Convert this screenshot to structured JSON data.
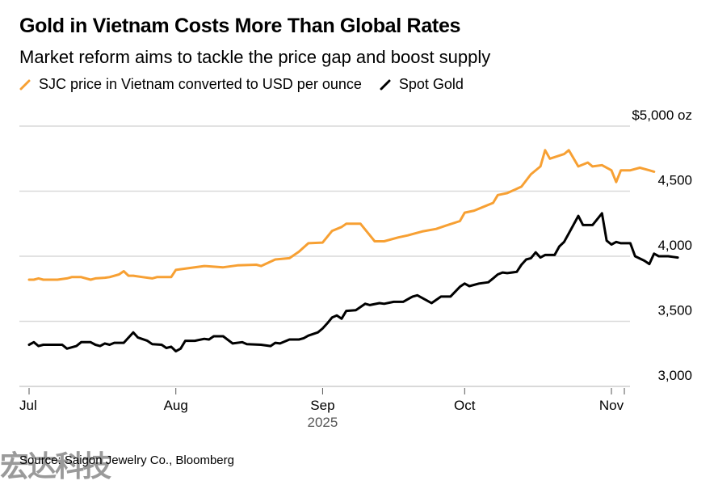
{
  "title": "Gold in Vietnam Costs More Than Global Rates",
  "subtitle": "Market reform aims to tackle the price gap and boost supply",
  "source": "Source: Saigon Jewelry Co., Bloomberg",
  "watermark": "宏达科技",
  "colors": {
    "sjc": "#f7a033",
    "spot": "#000000",
    "grid": "#d9d9d9"
  },
  "chart_data": {
    "type": "line",
    "title": "Gold in Vietnam Costs More Than Global Rates",
    "subtitle": "Market reform aims to tackle the price gap and boost supply",
    "xlabel": "2025",
    "ylabel": "",
    "y_unit_label": "$5,000 oz",
    "ylim": [
      3000,
      5000
    ],
    "yticks": [
      {
        "value": 5000,
        "label": "$5,000 oz"
      },
      {
        "value": 4500,
        "label": "4,500"
      },
      {
        "value": 4000,
        "label": "4,000"
      },
      {
        "value": 3500,
        "label": "3,500"
      },
      {
        "value": 3000,
        "label": "3,000"
      }
    ],
    "xticks": [
      {
        "date": "2025-07-01",
        "label": "Jul"
      },
      {
        "date": "2025-08-01",
        "label": "Aug"
      },
      {
        "date": "2025-09-01",
        "label": "Sep"
      },
      {
        "date": "2025-10-01",
        "label": "Oct"
      },
      {
        "date": "2025-11-01",
        "label": "Nov"
      }
    ],
    "x_range": [
      "2025-07-01",
      "2025-11-05"
    ],
    "grid": true,
    "legend_position": "top-left",
    "series": [
      {
        "name": "SJC price in Vietnam converted to USD per ounce",
        "color": "#f7a033",
        "points": [
          [
            "2025-07-01",
            3820
          ],
          [
            "2025-07-02",
            3820
          ],
          [
            "2025-07-03",
            3830
          ],
          [
            "2025-07-04",
            3820
          ],
          [
            "2025-07-06",
            3820
          ],
          [
            "2025-07-07",
            3820
          ],
          [
            "2025-07-09",
            3830
          ],
          [
            "2025-07-10",
            3840
          ],
          [
            "2025-07-12",
            3840
          ],
          [
            "2025-07-14",
            3820
          ],
          [
            "2025-07-15",
            3830
          ],
          [
            "2025-07-17",
            3835
          ],
          [
            "2025-07-18",
            3840
          ],
          [
            "2025-07-20",
            3860
          ],
          [
            "2025-07-21",
            3885
          ],
          [
            "2025-07-22",
            3850
          ],
          [
            "2025-07-23",
            3850
          ],
          [
            "2025-07-25",
            3840
          ],
          [
            "2025-07-27",
            3830
          ],
          [
            "2025-07-28",
            3840
          ],
          [
            "2025-07-31",
            3840
          ],
          [
            "2025-08-01",
            3895
          ],
          [
            "2025-08-04",
            3910
          ],
          [
            "2025-08-07",
            3925
          ],
          [
            "2025-08-11",
            3915
          ],
          [
            "2025-08-14",
            3930
          ],
          [
            "2025-08-18",
            3935
          ],
          [
            "2025-08-19",
            3925
          ],
          [
            "2025-08-22",
            3975
          ],
          [
            "2025-08-25",
            3985
          ],
          [
            "2025-08-27",
            4035
          ],
          [
            "2025-08-29",
            4100
          ],
          [
            "2025-09-01",
            4105
          ],
          [
            "2025-09-03",
            4195
          ],
          [
            "2025-09-05",
            4225
          ],
          [
            "2025-09-06",
            4250
          ],
          [
            "2025-09-09",
            4250
          ],
          [
            "2025-09-11",
            4160
          ],
          [
            "2025-09-12",
            4115
          ],
          [
            "2025-09-14",
            4115
          ],
          [
            "2025-09-17",
            4145
          ],
          [
            "2025-09-19",
            4160
          ],
          [
            "2025-09-22",
            4190
          ],
          [
            "2025-09-25",
            4210
          ],
          [
            "2025-09-27",
            4235
          ],
          [
            "2025-09-30",
            4270
          ],
          [
            "2025-10-01",
            4335
          ],
          [
            "2025-10-03",
            4350
          ],
          [
            "2025-10-05",
            4380
          ],
          [
            "2025-10-07",
            4410
          ],
          [
            "2025-10-08",
            4470
          ],
          [
            "2025-10-10",
            4485
          ],
          [
            "2025-10-13",
            4535
          ],
          [
            "2025-10-15",
            4630
          ],
          [
            "2025-10-17",
            4690
          ],
          [
            "2025-10-18",
            4815
          ],
          [
            "2025-10-19",
            4750
          ],
          [
            "2025-10-22",
            4785
          ],
          [
            "2025-10-23",
            4815
          ],
          [
            "2025-10-25",
            4690
          ],
          [
            "2025-10-27",
            4720
          ],
          [
            "2025-10-28",
            4690
          ],
          [
            "2025-10-30",
            4700
          ],
          [
            "2025-11-01",
            4660
          ],
          [
            "2025-11-02",
            4570
          ],
          [
            "2025-11-03",
            4660
          ],
          [
            "2025-11-05",
            4660
          ],
          [
            "2025-11-07",
            4680
          ],
          [
            "2025-11-09",
            4660
          ],
          [
            "2025-11-10",
            4650
          ]
        ]
      },
      {
        "name": "Spot Gold",
        "color": "#000000",
        "points": [
          [
            "2025-07-01",
            3320
          ],
          [
            "2025-07-02",
            3340
          ],
          [
            "2025-07-03",
            3310
          ],
          [
            "2025-07-04",
            3320
          ],
          [
            "2025-07-06",
            3320
          ],
          [
            "2025-07-08",
            3320
          ],
          [
            "2025-07-09",
            3290
          ],
          [
            "2025-07-11",
            3310
          ],
          [
            "2025-07-12",
            3340
          ],
          [
            "2025-07-14",
            3340
          ],
          [
            "2025-07-15",
            3320
          ],
          [
            "2025-07-16",
            3310
          ],
          [
            "2025-07-17",
            3330
          ],
          [
            "2025-07-18",
            3320
          ],
          [
            "2025-07-19",
            3335
          ],
          [
            "2025-07-21",
            3335
          ],
          [
            "2025-07-23",
            3415
          ],
          [
            "2025-07-24",
            3375
          ],
          [
            "2025-07-26",
            3350
          ],
          [
            "2025-07-27",
            3325
          ],
          [
            "2025-07-29",
            3320
          ],
          [
            "2025-07-30",
            3295
          ],
          [
            "2025-07-31",
            3305
          ],
          [
            "2025-08-01",
            3270
          ],
          [
            "2025-08-02",
            3290
          ],
          [
            "2025-08-03",
            3350
          ],
          [
            "2025-08-05",
            3350
          ],
          [
            "2025-08-07",
            3365
          ],
          [
            "2025-08-08",
            3360
          ],
          [
            "2025-08-09",
            3385
          ],
          [
            "2025-08-11",
            3385
          ],
          [
            "2025-08-13",
            3330
          ],
          [
            "2025-08-15",
            3340
          ],
          [
            "2025-08-16",
            3325
          ],
          [
            "2025-08-19",
            3320
          ],
          [
            "2025-08-21",
            3310
          ],
          [
            "2025-08-22",
            3335
          ],
          [
            "2025-08-23",
            3330
          ],
          [
            "2025-08-25",
            3360
          ],
          [
            "2025-08-27",
            3360
          ],
          [
            "2025-08-28",
            3370
          ],
          [
            "2025-08-29",
            3390
          ],
          [
            "2025-08-31",
            3415
          ],
          [
            "2025-09-01",
            3445
          ],
          [
            "2025-09-02",
            3485
          ],
          [
            "2025-09-03",
            3530
          ],
          [
            "2025-09-04",
            3545
          ],
          [
            "2025-09-05",
            3520
          ],
          [
            "2025-09-06",
            3580
          ],
          [
            "2025-09-08",
            3585
          ],
          [
            "2025-09-10",
            3635
          ],
          [
            "2025-09-11",
            3625
          ],
          [
            "2025-09-13",
            3640
          ],
          [
            "2025-09-14",
            3635
          ],
          [
            "2025-09-16",
            3650
          ],
          [
            "2025-09-18",
            3650
          ],
          [
            "2025-09-20",
            3690
          ],
          [
            "2025-09-21",
            3700
          ],
          [
            "2025-09-23",
            3660
          ],
          [
            "2025-09-24",
            3640
          ],
          [
            "2025-09-26",
            3690
          ],
          [
            "2025-09-28",
            3690
          ],
          [
            "2025-09-30",
            3765
          ],
          [
            "2025-10-01",
            3790
          ],
          [
            "2025-10-02",
            3770
          ],
          [
            "2025-10-04",
            3790
          ],
          [
            "2025-10-06",
            3800
          ],
          [
            "2025-10-07",
            3830
          ],
          [
            "2025-10-08",
            3860
          ],
          [
            "2025-10-09",
            3875
          ],
          [
            "2025-10-10",
            3870
          ],
          [
            "2025-10-12",
            3880
          ],
          [
            "2025-10-13",
            3935
          ],
          [
            "2025-10-14",
            3975
          ],
          [
            "2025-10-15",
            3985
          ],
          [
            "2025-10-16",
            4030
          ],
          [
            "2025-10-17",
            3990
          ],
          [
            "2025-10-18",
            4010
          ],
          [
            "2025-10-20",
            4010
          ],
          [
            "2025-10-21",
            4075
          ],
          [
            "2025-10-22",
            4110
          ],
          [
            "2025-10-23",
            4175
          ],
          [
            "2025-10-25",
            4310
          ],
          [
            "2025-10-26",
            4240
          ],
          [
            "2025-10-28",
            4240
          ],
          [
            "2025-10-30",
            4330
          ],
          [
            "2025-10-31",
            4120
          ],
          [
            "2025-11-01",
            4090
          ],
          [
            "2025-11-02",
            4110
          ],
          [
            "2025-11-03",
            4100
          ],
          [
            "2025-11-04",
            4100
          ],
          [
            "2025-11-05",
            4100
          ],
          [
            "2025-11-06",
            4000
          ],
          [
            "2025-11-08",
            3965
          ],
          [
            "2025-11-09",
            3940
          ],
          [
            "2025-11-10",
            4020
          ],
          [
            "2025-11-11",
            4000
          ],
          [
            "2025-11-13",
            4000
          ],
          [
            "2025-11-14",
            3995
          ],
          [
            "2025-11-15",
            3990
          ]
        ]
      }
    ]
  }
}
